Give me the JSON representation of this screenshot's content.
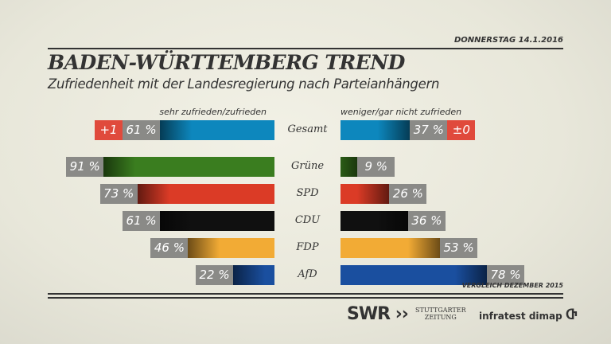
{
  "header": {
    "date": "DONNERSTAG 14.1.2016",
    "title": "BADEN-WÜRTTEMBERG TREND",
    "subtitle": "Zufriedenheit mit der Landesregierung nach Parteianhängern"
  },
  "chart_data": {
    "type": "bar",
    "orientation": "horizontal-diverging",
    "left_label": "sehr zufrieden/zufrieden",
    "right_label": "weniger/gar nicht zufrieden",
    "categories": [
      "Gesamt",
      "Grüne",
      "SPD",
      "CDU",
      "FDP",
      "AfD"
    ],
    "series": [
      {
        "name": "sehr zufrieden/zufrieden",
        "values": [
          61,
          91,
          73,
          61,
          46,
          22
        ]
      },
      {
        "name": "weniger/gar nicht zufrieden",
        "values": [
          37,
          9,
          26,
          36,
          53,
          78
        ]
      }
    ],
    "value_labels_left": [
      "61 %",
      "91 %",
      "73 %",
      "61 %",
      "46 %",
      "22 %"
    ],
    "value_labels_right": [
      "37 %",
      "9 %",
      "26 %",
      "36 %",
      "53 %",
      "78 %"
    ],
    "changes": {
      "Gesamt": {
        "left": "+1",
        "right": "±0"
      }
    },
    "colors": {
      "Gesamt": "#0d87bd",
      "Grüne": "#3a7d1f",
      "SPD": "#db3b26",
      "CDU": "#101010",
      "FDP": "#f2ab35",
      "AfD": "#1a4f9f"
    },
    "note": "VERGLEICH DEZEMBER 2015"
  },
  "footer": {
    "swr": "SWR",
    "stz_line1": "STUTTGARTER",
    "stz_line2": "ZEITUNG",
    "dimap": "infratest dimap"
  }
}
